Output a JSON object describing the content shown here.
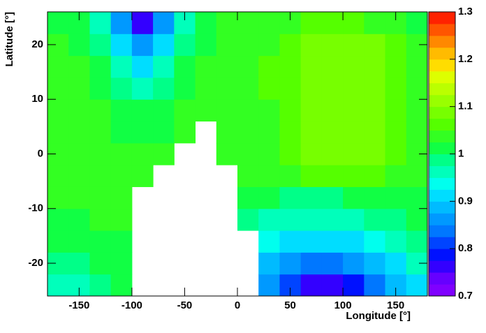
{
  "chart_data": {
    "type": "contour",
    "x_label": "Longitude [°]",
    "y_label": "Latitude [°]",
    "x": [
      -170,
      -150,
      -130,
      -110,
      -90,
      -70,
      -50,
      -30,
      -10,
      10,
      30,
      50,
      70,
      90,
      110,
      130,
      150,
      170
    ],
    "y": [
      -24,
      -20,
      -16,
      -12,
      -8,
      -4,
      0,
      4,
      8,
      12,
      16,
      20,
      24
    ],
    "z": [
      [
        0.96,
        0.97,
        0.99,
        1.0,
        null,
        null,
        null,
        null,
        null,
        null,
        0.85,
        0.8,
        0.77,
        0.76,
        0.78,
        0.83,
        0.88,
        0.92
      ],
      [
        0.98,
        0.99,
        1.0,
        1.01,
        null,
        null,
        null,
        null,
        null,
        null,
        0.89,
        0.86,
        0.84,
        0.84,
        0.85,
        0.88,
        0.92,
        0.95
      ],
      [
        1.0,
        1.01,
        1.02,
        1.02,
        null,
        null,
        null,
        null,
        null,
        null,
        0.94,
        0.92,
        0.91,
        0.91,
        0.92,
        0.94,
        0.96,
        0.98
      ],
      [
        1.02,
        1.02,
        1.03,
        1.03,
        null,
        null,
        null,
        null,
        null,
        0.99,
        0.97,
        0.96,
        0.96,
        0.96,
        0.97,
        0.98,
        0.99,
        1.0
      ],
      [
        1.03,
        1.03,
        1.03,
        1.03,
        null,
        null,
        null,
        null,
        null,
        1.01,
        1.0,
        0.99,
        0.99,
        0.99,
        1.0,
        1.01,
        1.02,
        1.02
      ],
      [
        1.03,
        1.03,
        1.03,
        1.03,
        1.03,
        null,
        null,
        null,
        null,
        1.03,
        1.03,
        1.04,
        1.05,
        1.06,
        1.06,
        1.06,
        1.04,
        1.03
      ],
      [
        1.03,
        1.03,
        1.03,
        1.03,
        1.03,
        1.03,
        null,
        null,
        1.04,
        1.04,
        1.04,
        1.05,
        1.08,
        1.08,
        1.08,
        1.08,
        1.05,
        1.03
      ],
      [
        1.03,
        1.03,
        1.03,
        1.02,
        1.02,
        1.02,
        1.03,
        null,
        1.04,
        1.04,
        1.04,
        1.05,
        1.08,
        1.08,
        1.08,
        1.08,
        1.05,
        1.03
      ],
      [
        1.03,
        1.03,
        1.03,
        1.01,
        1.0,
        1.01,
        1.03,
        1.04,
        1.04,
        1.04,
        1.04,
        1.06,
        1.08,
        1.09,
        1.09,
        1.08,
        1.05,
        1.03
      ],
      [
        1.03,
        1.03,
        1.02,
        0.99,
        0.97,
        0.99,
        1.02,
        1.04,
        1.04,
        1.04,
        1.05,
        1.06,
        1.08,
        1.09,
        1.09,
        1.08,
        1.06,
        1.03
      ],
      [
        1.03,
        1.03,
        1.01,
        0.96,
        0.92,
        0.96,
        1.01,
        1.03,
        1.04,
        1.04,
        1.05,
        1.07,
        1.08,
        1.09,
        1.09,
        1.08,
        1.06,
        1.03
      ],
      [
        1.03,
        1.02,
        0.99,
        0.92,
        0.85,
        0.91,
        0.99,
        1.02,
        1.03,
        1.03,
        1.04,
        1.06,
        1.08,
        1.09,
        1.09,
        1.08,
        1.05,
        1.03
      ],
      [
        1.02,
        1.0,
        0.96,
        0.86,
        0.77,
        0.86,
        0.97,
        1.02,
        1.03,
        1.03,
        1.03,
        1.04,
        1.05,
        1.05,
        1.05,
        1.04,
        1.03,
        1.02
      ]
    ],
    "xlim": [
      -180,
      180
    ],
    "ylim": [
      -26,
      26
    ],
    "xticks": [
      -150,
      -100,
      -50,
      0,
      50,
      100,
      150
    ],
    "yticks": [
      -20,
      -10,
      0,
      10,
      20
    ],
    "zlim": [
      0.7,
      1.3
    ],
    "zticks": [
      0.7,
      0.8,
      0.9,
      1,
      1.1,
      1.2,
      1.3
    ],
    "colors": [
      "#7f00ff",
      "#6600ff",
      "#3300ff",
      "#0011ff",
      "#0044ff",
      "#0077ff",
      "#0099ff",
      "#00bbff",
      "#00ddff",
      "#00ffee",
      "#00ffbb",
      "#00ff88",
      "#11ff44",
      "#33ff22",
      "#55ff00",
      "#77ff00",
      "#99ff00",
      "#bbff00",
      "#ddff00",
      "#ffdd00",
      "#ffbb00",
      "#ff8800",
      "#ff5500",
      "#ff2200"
    ]
  }
}
